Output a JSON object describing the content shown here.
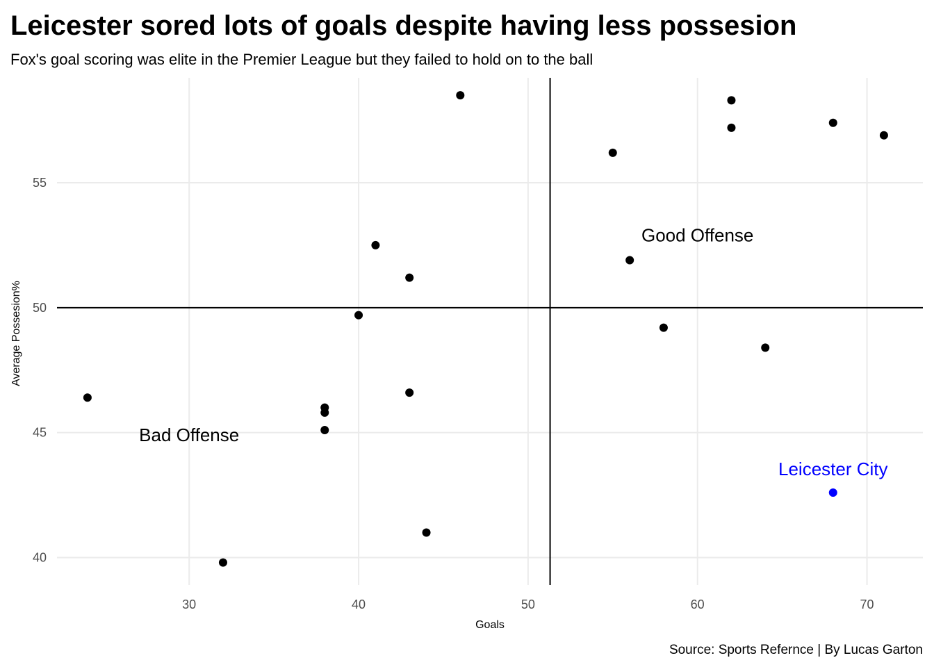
{
  "chart_data": {
    "type": "scatter",
    "title": "Leicester sored lots of goals despite having less possesion",
    "subtitle": "Fox's goal scoring was elite in the Premier League but they failed to hold on to the ball",
    "caption": "Source: Sports Refernce | By Lucas Garton",
    "xlabel": "Goals",
    "ylabel": "Average Possesion%",
    "xlim": [
      22.2,
      73.3
    ],
    "ylim": [
      38.9,
      59.2
    ],
    "x_ticks": [
      "30",
      "40",
      "50",
      "60",
      "70"
    ],
    "y_ticks": [
      "40",
      "45",
      "50",
      "55"
    ],
    "grid": true,
    "reference_lines": {
      "x": 51.3,
      "y": 50
    },
    "colors": {
      "default_point": "#000000",
      "highlight": "#0000ff",
      "reference_line": "#000000"
    },
    "points": [
      {
        "x": 24,
        "y": 46.4
      },
      {
        "x": 32,
        "y": 39.8
      },
      {
        "x": 38,
        "y": 46.0
      },
      {
        "x": 38,
        "y": 45.8
      },
      {
        "x": 38,
        "y": 45.1
      },
      {
        "x": 40,
        "y": 49.7
      },
      {
        "x": 41,
        "y": 52.5
      },
      {
        "x": 43,
        "y": 51.2
      },
      {
        "x": 43,
        "y": 46.6
      },
      {
        "x": 44,
        "y": 41.0
      },
      {
        "x": 46,
        "y": 58.5
      },
      {
        "x": 55,
        "y": 56.2
      },
      {
        "x": 56,
        "y": 51.9
      },
      {
        "x": 58,
        "y": 49.2
      },
      {
        "x": 62,
        "y": 58.3
      },
      {
        "x": 62,
        "y": 57.2
      },
      {
        "x": 64,
        "y": 48.4
      },
      {
        "x": 68,
        "y": 57.4
      },
      {
        "x": 71,
        "y": 56.9
      }
    ],
    "highlight": {
      "label": "Leicester City",
      "x": 68,
      "y": 42.6
    },
    "annotations": [
      {
        "text": "Good Offense",
        "x": 60,
        "y": 52.9
      },
      {
        "text": "Bad Offense",
        "x": 30,
        "y": 44.9
      }
    ]
  }
}
